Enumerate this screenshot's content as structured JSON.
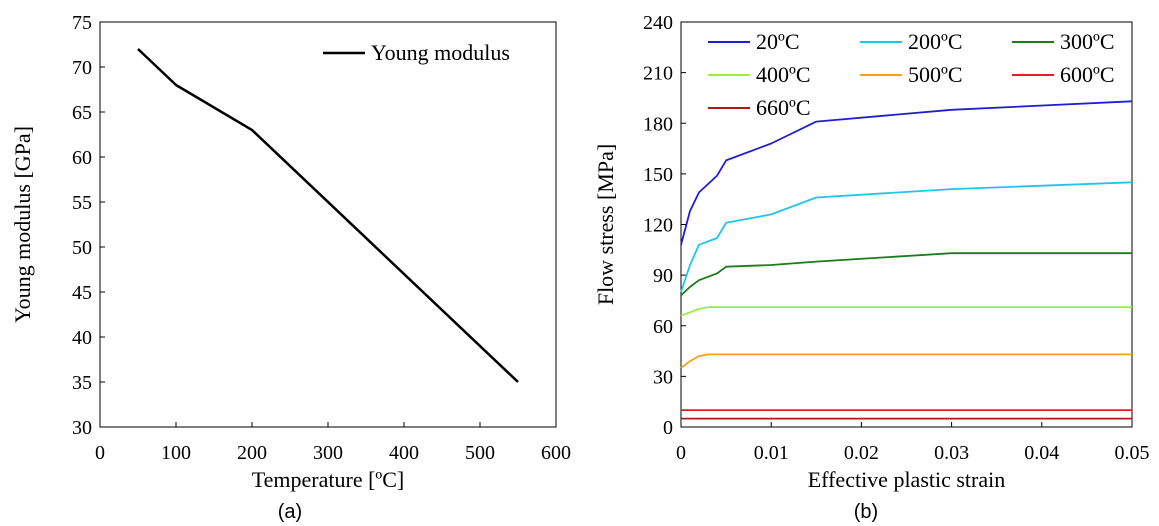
{
  "chart_data": [
    {
      "type": "line",
      "panel_label": "(a)",
      "xlabel": "Temperature [ºC]",
      "ylabel": "Young modulus [GPa]",
      "xlim": [
        0,
        600
      ],
      "ylim": [
        30,
        75
      ],
      "xticks": [
        "0",
        "100",
        "200",
        "300",
        "400",
        "500",
        "600"
      ],
      "yticks": [
        "30",
        "35",
        "40",
        "45",
        "50",
        "55",
        "60",
        "65",
        "70",
        "75"
      ],
      "grid": false,
      "legend_position": "top-right",
      "series": [
        {
          "name": "Young modulus",
          "color": "#000000",
          "x": [
            50,
            100,
            200,
            550
          ],
          "y": [
            72,
            68,
            63,
            35
          ]
        }
      ]
    },
    {
      "type": "line",
      "panel_label": "(b)",
      "xlabel": "Effective plastic strain",
      "ylabel": "Flow stress [MPa]",
      "xlim": [
        0,
        0.05
      ],
      "ylim": [
        0,
        240
      ],
      "xticks": [
        "0",
        "0.01",
        "0.02",
        "0.03",
        "0.04",
        "0.05"
      ],
      "yticks": [
        "0",
        "30",
        "60",
        "90",
        "120",
        "150",
        "180",
        "210",
        "240"
      ],
      "grid": false,
      "legend_position": "top",
      "series": [
        {
          "name": "20ºC",
          "color": "#1f1fd0",
          "x": [
            0,
            0.001,
            0.002,
            0.003,
            0.004,
            0.005,
            0.01,
            0.015,
            0.03,
            0.05
          ],
          "y": [
            108,
            128,
            139,
            144,
            149,
            158,
            168,
            181,
            188,
            193
          ]
        },
        {
          "name": "200ºC",
          "color": "#22c4ee",
          "x": [
            0,
            0.001,
            0.002,
            0.003,
            0.004,
            0.005,
            0.01,
            0.015,
            0.03,
            0.05
          ],
          "y": [
            80,
            96,
            108,
            110,
            112,
            121,
            126,
            136,
            141,
            145
          ]
        },
        {
          "name": "300ºC",
          "color": "#1a7d1a",
          "x": [
            0,
            0.001,
            0.002,
            0.003,
            0.004,
            0.005,
            0.01,
            0.015,
            0.03,
            0.05
          ],
          "y": [
            78,
            83,
            87,
            89,
            91,
            95,
            96,
            98,
            103,
            103
          ]
        },
        {
          "name": "400ºC",
          "color": "#99ee44",
          "x": [
            0,
            0.001,
            0.002,
            0.003,
            0.05
          ],
          "y": [
            66,
            68,
            70,
            71,
            71
          ]
        },
        {
          "name": "500ºC",
          "color": "#f5a020",
          "x": [
            0,
            0.001,
            0.002,
            0.003,
            0.05
          ],
          "y": [
            35,
            39,
            42,
            43,
            43
          ]
        },
        {
          "name": "600ºC",
          "color": "#e02020",
          "x": [
            0,
            0.05
          ],
          "y": [
            10,
            10
          ]
        },
        {
          "name": "660ºC",
          "color": "#b01818",
          "x": [
            0,
            0.05
          ],
          "y": [
            5,
            5
          ]
        }
      ]
    }
  ]
}
